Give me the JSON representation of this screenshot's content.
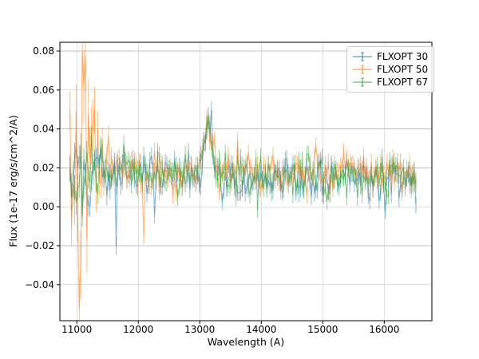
{
  "figure": {
    "background": "#ffffff"
  },
  "chart_data": {
    "type": "line",
    "title": "",
    "xlabel": "Wavelength (A)",
    "ylabel": "Flux (1e-17 erg/s/cm^2/A)",
    "xlim": [
      10725,
      16775
    ],
    "ylim": [
      -0.0585,
      0.0845
    ],
    "grid": true,
    "grid_color": "#c0c0c0",
    "xticks": {
      "values": [
        11000,
        12000,
        13000,
        14000,
        15000,
        16000
      ],
      "labels": [
        "11000",
        "12000",
        "13000",
        "14000",
        "15000",
        "16000"
      ]
    },
    "yticks": {
      "values": [
        -0.04,
        -0.02,
        0.0,
        0.02,
        0.04,
        0.06,
        0.08
      ],
      "labels": [
        "−0.04",
        "−0.02",
        "0.00",
        "0.02",
        "0.04",
        "0.06",
        "0.08"
      ]
    },
    "legend": {
      "position": "upper right",
      "entries": [
        {
          "label": "FLXOPT 30",
          "color": "#1f77b4"
        },
        {
          "label": "FLXOPT 50",
          "color": "#ff7f0e"
        },
        {
          "label": "FLXOPT 67",
          "color": "#2ca02c"
        }
      ]
    },
    "alpha": 0.5,
    "plot_style": "errorbar",
    "profile": {
      "x_start": 10890,
      "x_end": 16520,
      "step": 25,
      "baseline_start": 0.0185,
      "baseline_end": 0.0145,
      "peak": {
        "center": 13130,
        "sigma": 62,
        "amplitude": 0.0265
      },
      "noise_sigma": 0.0054,
      "left_extra": 0.0045,
      "left_decay": 450,
      "errorbar_base": 0.0012,
      "errorbar_factor": 0.55
    },
    "series": [
      {
        "name": "FLXOPT 30",
        "color": "#1f77b4",
        "seed": 101,
        "baseline_offset": -0.0012,
        "anchors": [
          [
            11640,
            -0.02
          ],
          [
            12255,
            -0.004
          ],
          [
            13130,
            0.047
          ]
        ]
      },
      {
        "name": "FLXOPT 50",
        "color": "#ff7f0e",
        "seed": 202,
        "baseline_offset": 0.0012,
        "extreme_noise": {
          "center": 11130,
          "sigma": 140,
          "amp": 0.0235
        },
        "anchors": [
          [
            11045,
            -0.052
          ],
          [
            11075,
            -0.03
          ],
          [
            11105,
            0.062
          ],
          [
            11150,
            0.0775
          ],
          [
            11190,
            0.048
          ],
          [
            11260,
            0.042
          ],
          [
            12100,
            -0.015
          ],
          [
            13140,
            0.0445
          ]
        ]
      },
      {
        "name": "FLXOPT 67",
        "color": "#2ca02c",
        "seed": 303,
        "baseline_offset": 0.0002,
        "anchors": [
          [
            13120,
            0.0425
          ]
        ]
      }
    ],
    "observed_points": {
      "x": [
        11000,
        11500,
        12000,
        12500,
        13000,
        13130,
        13500,
        14000,
        14500,
        15000,
        15500,
        16000,
        16500
      ],
      "mean_flux": [
        0.019,
        0.018,
        0.018,
        0.017,
        0.019,
        0.044,
        0.017,
        0.016,
        0.016,
        0.015,
        0.015,
        0.014,
        0.016
      ]
    },
    "observed_extremes": {
      "peak": {
        "wavelength": 13130,
        "flux_flxopt30": 0.047,
        "flux_flxopt50": 0.0445,
        "flux_flxopt67": 0.0425
      },
      "flxopt50_max": {
        "wavelength": 11150,
        "flux": 0.078
      },
      "flxopt50_min": {
        "wavelength": 11045,
        "flux": -0.052
      }
    }
  }
}
